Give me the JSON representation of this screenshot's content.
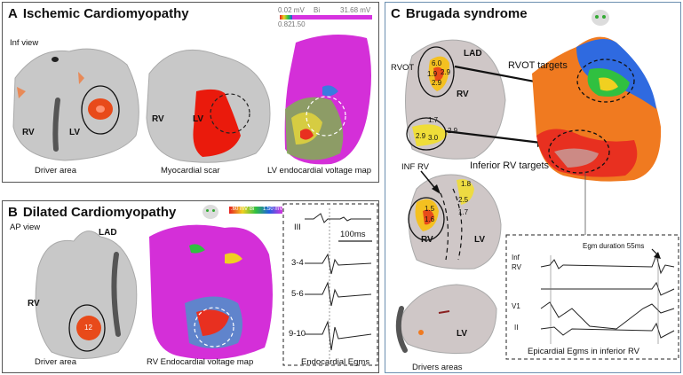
{
  "panel_a": {
    "letter": "A",
    "title": "Ischemic Cardiomyopathy",
    "view": "Inf view",
    "scale_min": "0.02 mV",
    "scale_mode": "Bi",
    "scale_max": "31.68 mV",
    "scale_sub1": "0.82",
    "scale_sub2": "1.50",
    "rv_left": "RV",
    "lv_left": "LV",
    "rv_mid": "RV",
    "lv_mid": "LV",
    "caption_driver": "Driver area",
    "caption_scar": "Myocardial scar",
    "caption_voltage": "LV endocardial voltage map"
  },
  "panel_b": {
    "letter": "B",
    "title": "Dilated Cardiomyopathy",
    "view": "AP view",
    "lad": "LAD",
    "rv": "RV",
    "spot": "12",
    "scale_min": ".60 mV",
    "scale_mode": "Bi",
    "scale_max": "1.50 mV",
    "caption_driver": "Driver area",
    "caption_voltage": "RV Endocardial voltage map",
    "egm_leads": [
      "III",
      "3-4",
      "5-6",
      "9-10"
    ],
    "egm_scale": "100ms",
    "caption_egms": "Endocardial Egms"
  },
  "panel_c": {
    "letter": "C",
    "title": "Brugada syndrome",
    "rvot": "RVOT",
    "lad": "LAD",
    "rv_top": "RV",
    "rvot_targets": "RVOT targets",
    "inf_rv": "INF RV",
    "inferior_targets": "Inferior RV targets",
    "rv_mid": "RV",
    "lv_mid": "LV",
    "lv_bottom": "LV",
    "caption_drivers": "Drivers areas",
    "egm_duration": "Egm duration 55ms",
    "inf_label": "Inf",
    "rv_label": "RV",
    "v1": "V1",
    "ii": "II",
    "caption_egms": "Epicardial Egms in inferior RV",
    "spot_values_top": [
      "6.0",
      "2.9",
      "1.9",
      "2.9"
    ],
    "spot_values_inf": [
      "1.7",
      "2.9",
      "3.0",
      "2.9"
    ],
    "spot_values_mid": [
      "1.8",
      "2.5",
      "1.5",
      "1.7",
      "1.6"
    ]
  }
}
